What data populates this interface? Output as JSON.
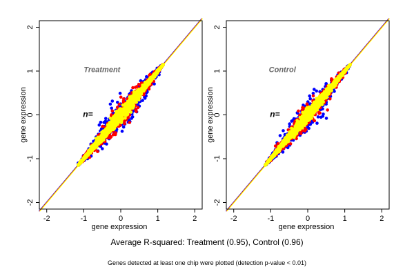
{
  "chart_data": [
    {
      "type": "scatter",
      "panel_title": "Treatment",
      "annotation": "n=",
      "xlabel": "gene expression",
      "ylabel": "gene expression",
      "xlim": [
        -2.2,
        2.2
      ],
      "ylim": [
        -2.15,
        2.15
      ],
      "xticks": [
        "-2",
        "-1",
        "0",
        "1",
        "2"
      ],
      "yticks": [
        "-2",
        "-1",
        "0",
        "1",
        "2"
      ],
      "grid": false,
      "data_range": [
        -1.15,
        1.15
      ],
      "series_colors": [
        "#0000ff",
        "#ff0000",
        "#ffff00"
      ],
      "reference_lines": [
        {
          "slope": 1,
          "intercept": 0,
          "color": "#0000ff"
        },
        {
          "slope": 1,
          "intercept": 0,
          "color": "#ff0000"
        },
        {
          "slope": 1,
          "intercept": 0,
          "color": "#ffff00"
        }
      ]
    },
    {
      "type": "scatter",
      "panel_title": "Control",
      "annotation": "n=",
      "xlabel": "gene expression",
      "ylabel": "gene expression",
      "xlim": [
        -2.2,
        2.2
      ],
      "ylim": [
        -2.15,
        2.15
      ],
      "xticks": [
        "-2",
        "-1",
        "0",
        "1",
        "2"
      ],
      "yticks": [
        "-2",
        "-1",
        "0",
        "1",
        "2"
      ],
      "grid": false,
      "data_range": [
        -1.15,
        1.15
      ],
      "series_colors": [
        "#0000ff",
        "#ff0000",
        "#ffff00"
      ],
      "reference_lines": [
        {
          "slope": 1,
          "intercept": 0,
          "color": "#0000ff"
        },
        {
          "slope": 1,
          "intercept": 0,
          "color": "#ff0000"
        },
        {
          "slope": 1,
          "intercept": 0,
          "color": "#ffff00"
        }
      ]
    }
  ],
  "caption": {
    "main": "Average R-squared: Treatment (0.95), Control (0.96)",
    "sub": "Genes detected at least one chip were plotted (detection p-value < 0.01)"
  }
}
